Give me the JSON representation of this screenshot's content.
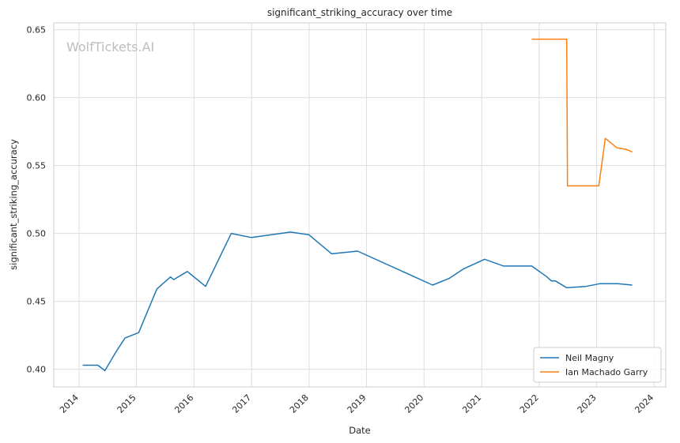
{
  "chart_data": {
    "type": "line",
    "title": "significant_striking_accuracy over time",
    "xlabel": "Date",
    "ylabel": "significant_striking_accuracy",
    "watermark": "WolfTickets.AI",
    "xlim": [
      "2013-07-25",
      "2024-03-15"
    ],
    "ylim": [
      0.387,
      0.655
    ],
    "x_ticks": [
      "2014",
      "2015",
      "2016",
      "2017",
      "2018",
      "2019",
      "2020",
      "2021",
      "2022",
      "2023",
      "2024"
    ],
    "y_ticks": [
      "0.40",
      "0.45",
      "0.50",
      "0.55",
      "0.60",
      "0.65"
    ],
    "grid": true,
    "legend_position": "bottom-right",
    "series": [
      {
        "name": "Neil Magny",
        "color": "#1f77b4",
        "points": [
          [
            "2014-01-25",
            0.403
          ],
          [
            "2014-05-01",
            0.403
          ],
          [
            "2014-06-15",
            0.399
          ],
          [
            "2014-08-25",
            0.413
          ],
          [
            "2014-10-20",
            0.423
          ],
          [
            "2015-01-15",
            0.427
          ],
          [
            "2015-05-10",
            0.459
          ],
          [
            "2015-08-05",
            0.468
          ],
          [
            "2015-08-25",
            0.466
          ],
          [
            "2015-11-20",
            0.472
          ],
          [
            "2016-03-15",
            0.461
          ],
          [
            "2016-08-25",
            0.5
          ],
          [
            "2016-12-31",
            0.497
          ],
          [
            "2017-09-05",
            0.501
          ],
          [
            "2017-12-31",
            0.499
          ],
          [
            "2018-05-25",
            0.485
          ],
          [
            "2018-11-05",
            0.487
          ],
          [
            "2020-02-25",
            0.462
          ],
          [
            "2020-06-10",
            0.467
          ],
          [
            "2020-09-10",
            0.474
          ],
          [
            "2021-01-20",
            0.481
          ],
          [
            "2021-05-20",
            0.476
          ],
          [
            "2021-11-15",
            0.476
          ],
          [
            "2022-02-20",
            0.468
          ],
          [
            "2022-03-20",
            0.465
          ],
          [
            "2022-04-15",
            0.465
          ],
          [
            "2022-06-25",
            0.46
          ],
          [
            "2022-10-25",
            0.461
          ],
          [
            "2023-01-20",
            0.463
          ],
          [
            "2023-05-15",
            0.463
          ],
          [
            "2023-08-15",
            0.462
          ]
        ]
      },
      {
        "name": "Ian Machado Garry",
        "color": "#ff7f0e",
        "points": [
          [
            "2021-11-15",
            0.643
          ],
          [
            "2022-06-25",
            0.643
          ],
          [
            "2022-06-30",
            0.535
          ],
          [
            "2023-01-15",
            0.535
          ],
          [
            "2023-02-25",
            0.57
          ],
          [
            "2023-05-10",
            0.563
          ],
          [
            "2023-07-05",
            0.562
          ],
          [
            "2023-08-15",
            0.56
          ]
        ]
      }
    ]
  }
}
